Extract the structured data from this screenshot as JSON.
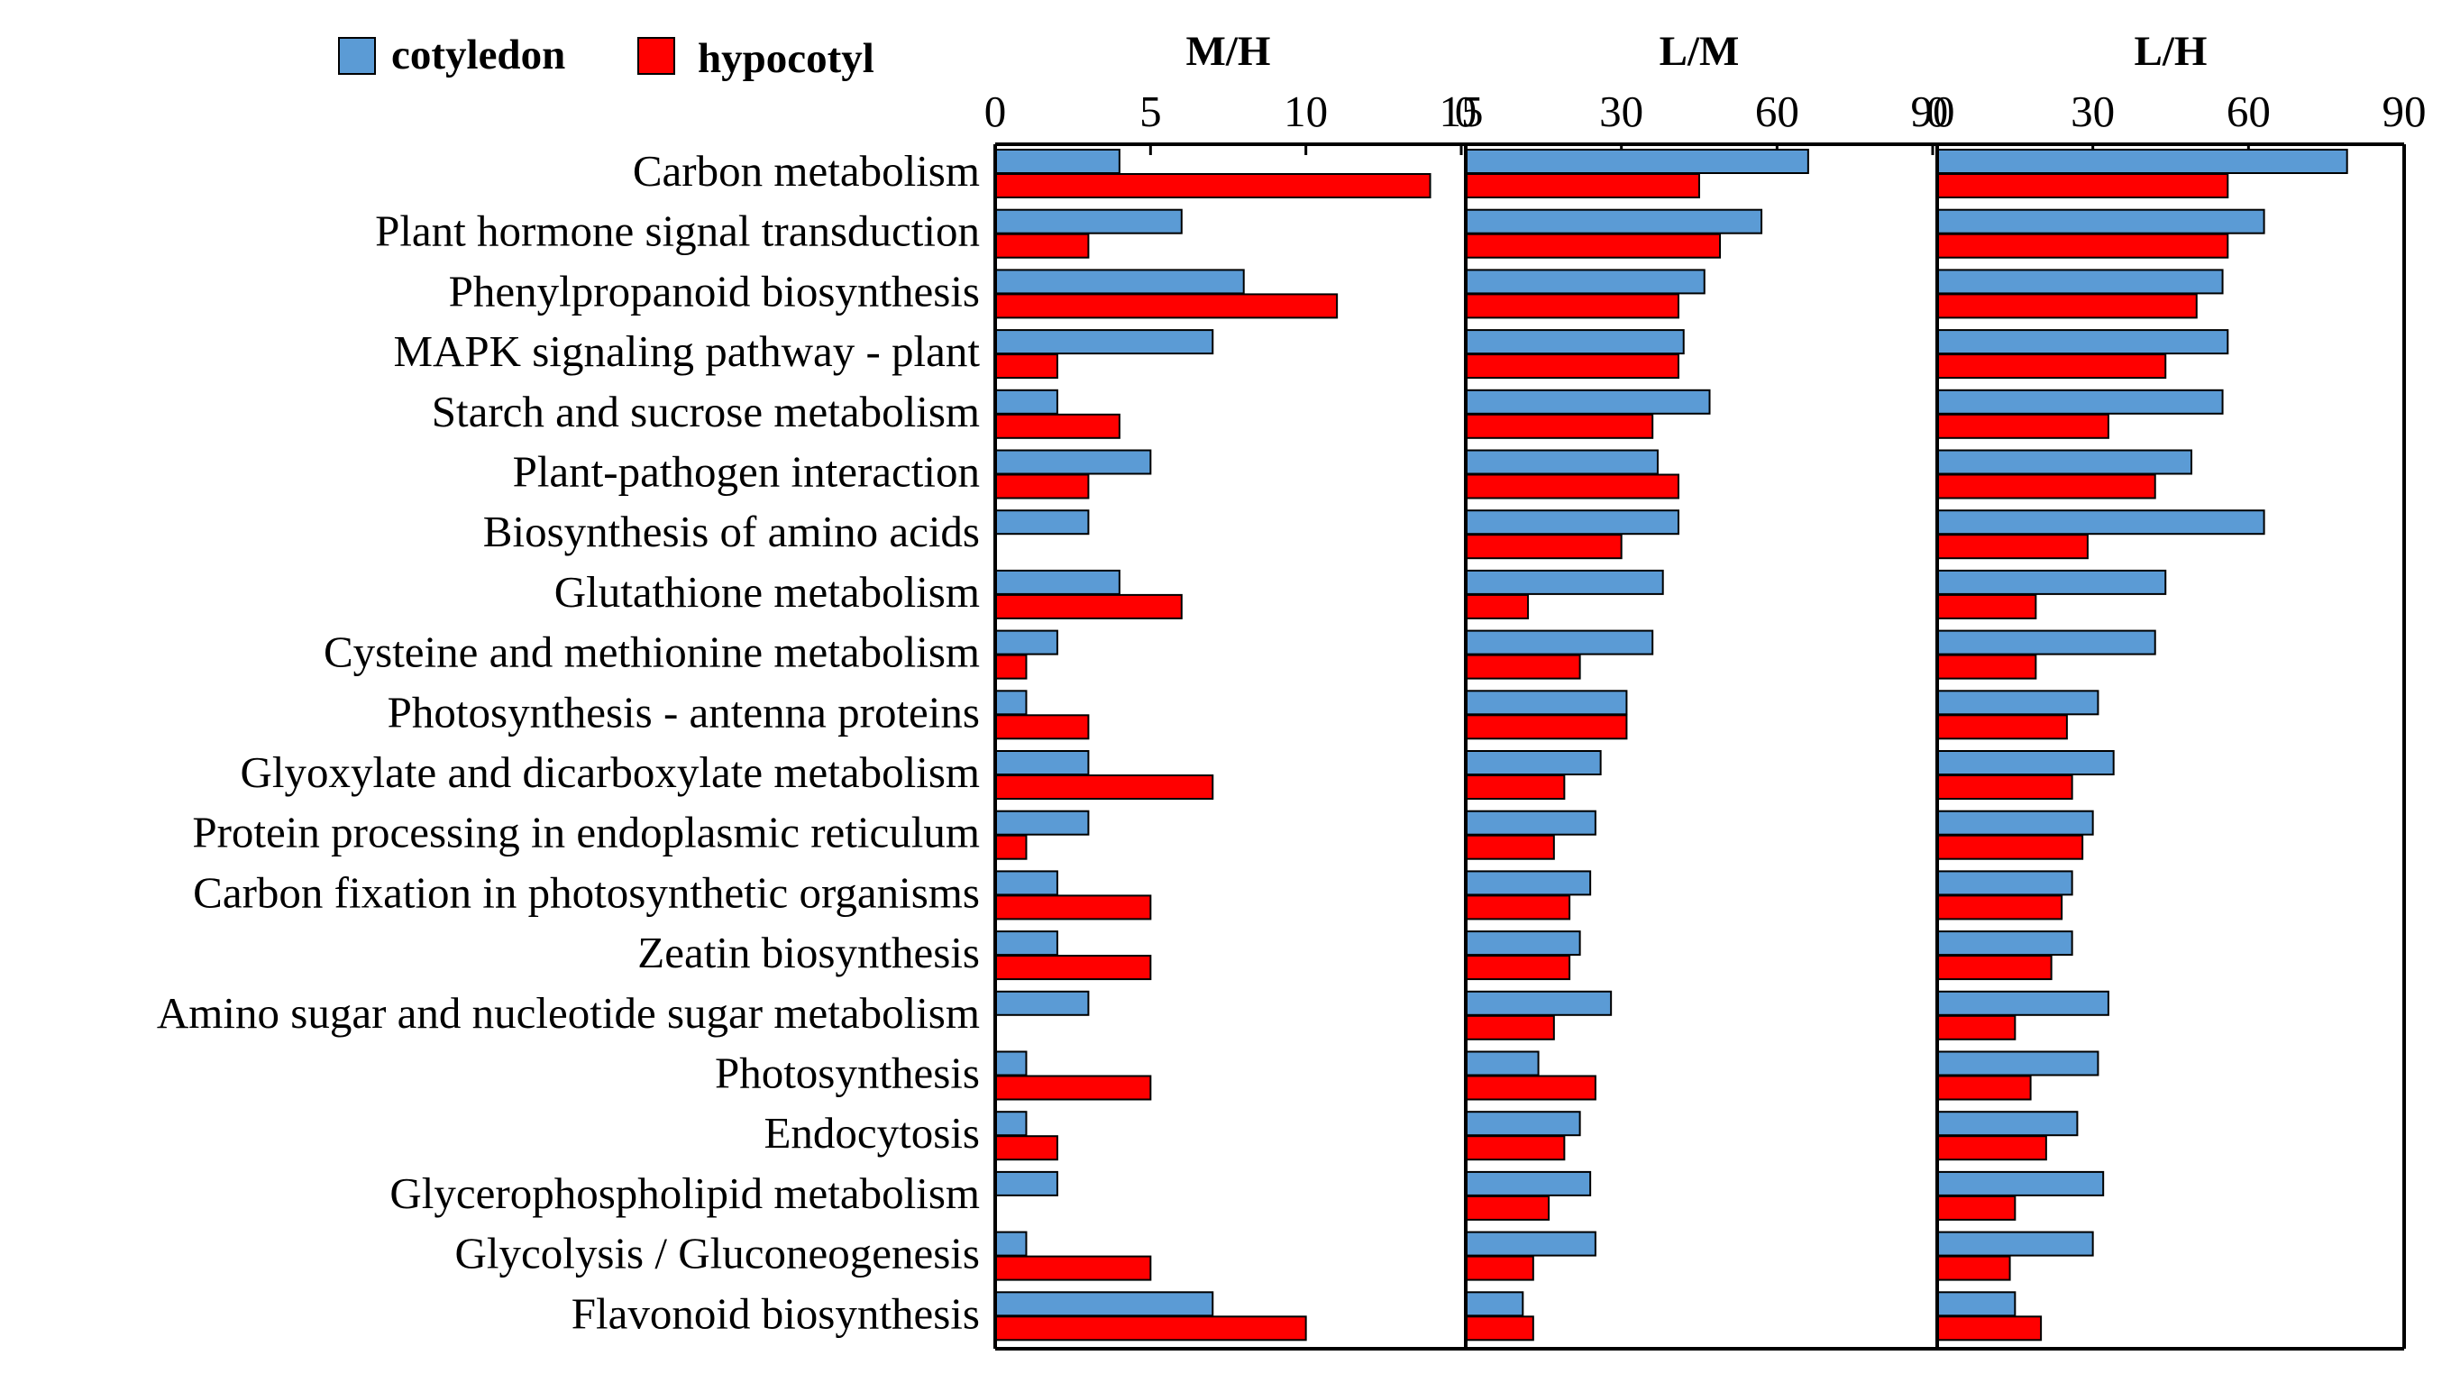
{
  "chart_data": {
    "type": "bar",
    "orientation": "horizontal",
    "categories": [
      "Carbon metabolism",
      "Plant hormone signal transduction",
      "Phenylpropanoid biosynthesis",
      "MAPK signaling pathway - plant",
      "Starch and sucrose metabolism",
      "Plant-pathogen interaction",
      "Biosynthesis of amino acids",
      "Glutathione metabolism",
      "Cysteine and methionine metabolism",
      "Photosynthesis - antenna proteins",
      "Glyoxylate and dicarboxylate metabolism",
      "Protein processing in endoplasmic reticulum",
      "Carbon fixation in photosynthetic organisms",
      "Zeatin biosynthesis",
      "Amino sugar and nucleotide sugar metabolism",
      "Photosynthesis",
      "Endocytosis",
      "Glycerophospholipid metabolism",
      "Glycolysis / Gluconeogenesis",
      "Flavonoid biosynthesis"
    ],
    "legend": {
      "placement": "top-left",
      "entries": [
        {
          "name": "cotyledon",
          "color": "#5B9BD5"
        },
        {
          "name": "hypocotyl",
          "color": "#FF0000"
        }
      ]
    },
    "panels": [
      {
        "title": "M/H",
        "xlim": [
          0,
          15
        ],
        "ticks": [
          "0",
          "5",
          "10",
          "15"
        ],
        "series": [
          {
            "name": "cotyledon",
            "values": [
              4,
              6,
              8,
              7,
              2,
              5,
              3,
              4,
              2,
              1,
              3,
              3,
              2,
              2,
              3,
              1,
              1,
              2,
              1,
              7
            ]
          },
          {
            "name": "hypocotyl",
            "values": [
              14,
              3,
              11,
              2,
              4,
              3,
              0,
              6,
              1,
              3,
              7,
              1,
              5,
              5,
              0,
              5,
              2,
              0,
              5,
              10
            ]
          }
        ]
      },
      {
        "title": "L/M",
        "xlim": [
          0,
          90
        ],
        "ticks": [
          "0",
          "30",
          "60",
          "90"
        ],
        "series": [
          {
            "name": "cotyledon",
            "values": [
              66,
              57,
              46,
              42,
              47,
              37,
              41,
              38,
              36,
              31,
              26,
              25,
              24,
              22,
              28,
              14,
              22,
              24,
              25,
              11
            ]
          },
          {
            "name": "hypocotyl",
            "values": [
              45,
              49,
              41,
              41,
              36,
              41,
              30,
              12,
              22,
              31,
              19,
              17,
              20,
              20,
              17,
              25,
              19,
              16,
              13,
              13
            ]
          }
        ]
      },
      {
        "title": "L/H",
        "xlim": [
          0,
          90
        ],
        "ticks": [
          "0",
          "30",
          "60",
          "90"
        ],
        "series": [
          {
            "name": "cotyledon",
            "values": [
              79,
              63,
              55,
              56,
              55,
              49,
              63,
              44,
              42,
              31,
              34,
              30,
              26,
              26,
              33,
              31,
              27,
              32,
              30,
              15
            ]
          },
          {
            "name": "hypocotyl",
            "values": [
              56,
              56,
              50,
              44,
              33,
              42,
              29,
              19,
              19,
              25,
              26,
              28,
              24,
              22,
              15,
              18,
              21,
              15,
              14,
              20
            ]
          }
        ]
      }
    ],
    "grid": false
  }
}
